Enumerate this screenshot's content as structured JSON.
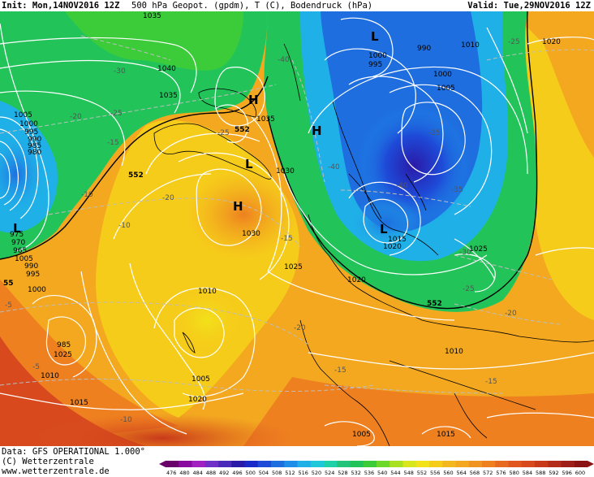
{
  "header": {
    "init": "Init: Mon,14NOV2016 12Z",
    "description": "500 hPa Geopot. (gpdm), T (C), Bodendruck (hPa)",
    "valid": "Valid: Tue,29NOV2016 12Z"
  },
  "footer": {
    "data_source": "Data: GFS OPERATIONAL 1.000°",
    "copyright": "(C) Wetterzentrale",
    "website": "www.wetterzentrale.de"
  },
  "colors": {
    "cold_core": "#2a1aa8",
    "cold": "#1e6ee0",
    "cool": "#1fb0e8",
    "green": "#22c45a",
    "yellow": "#f2e21a",
    "orange": "#f3a820",
    "warm_orange": "#ee8020",
    "red": "#d84a1e",
    "coast": "#000000",
    "isobar": "#ffffff",
    "isotherm": "#bdbdbd"
  },
  "pressure_centers": [
    {
      "type": "H",
      "label": "H"
    },
    {
      "type": "H",
      "label": "H"
    },
    {
      "type": "H",
      "label": "H"
    },
    {
      "type": "L",
      "label": "L"
    },
    {
      "type": "L",
      "label": "L"
    },
    {
      "type": "L",
      "label": "L"
    },
    {
      "type": "L",
      "label": "L"
    }
  ],
  "isobar_labels": [
    "1035",
    "1040",
    "1035",
    "1035",
    "1030",
    "1030",
    "1025",
    "1020",
    "1010",
    "1005",
    "1000",
    "995",
    "990",
    "985",
    "980",
    "975",
    "970",
    "965",
    "1005",
    "1000",
    "995",
    "990",
    "985",
    "1010",
    "1015",
    "1020",
    "1025",
    "1005",
    "1000",
    "995",
    "990",
    "1010",
    "1000",
    "1005",
    "1015",
    "1020",
    "1025",
    "1010",
    "1005",
    "1015",
    "1020",
    "1020",
    "1015",
    "1020",
    "1015",
    "1005",
    "1000",
    "995",
    "1010"
  ],
  "temperature_labels": [
    "-30",
    "-25",
    "-20",
    "-15",
    "-10",
    "-5",
    "-20",
    "-25",
    "-40",
    "-35",
    "-40",
    "-40",
    "-35",
    "-30",
    "-25",
    "-20",
    "-15",
    "-10",
    "-20",
    "-15",
    "-10",
    "-5",
    "-25",
    "-30",
    "-35",
    "-20",
    "-15",
    "-10"
  ],
  "geopotential_labels": [
    "552",
    "552",
    "552",
    "552",
    "55"
  ],
  "scale": {
    "values": [
      "476",
      "480",
      "484",
      "488",
      "492",
      "496",
      "500",
      "504",
      "508",
      "512",
      "516",
      "520",
      "524",
      "528",
      "532",
      "536",
      "540",
      "544",
      "548",
      "552",
      "556",
      "560",
      "564",
      "568",
      "572",
      "576",
      "580",
      "584",
      "588",
      "592",
      "596",
      "600"
    ],
    "colors": [
      "#6a006a",
      "#8a0aa0",
      "#a020c0",
      "#7030c8",
      "#4a2ab8",
      "#2a1aa8",
      "#1a2ac8",
      "#1e4ad8",
      "#1e6ee0",
      "#1e8ee8",
      "#1fb0e8",
      "#1fc8d8",
      "#20d0a8",
      "#22c47a",
      "#22c45a",
      "#3ccc3a",
      "#6cd82a",
      "#a8e022",
      "#d8e61c",
      "#f2e21a",
      "#f6cc1a",
      "#f3b81e",
      "#f3a820",
      "#ef9420",
      "#ee8020",
      "#e86a20",
      "#e0561e",
      "#d84a1e",
      "#c83a1a",
      "#b42c1a",
      "#a01e18",
      "#8a1414"
    ]
  }
}
